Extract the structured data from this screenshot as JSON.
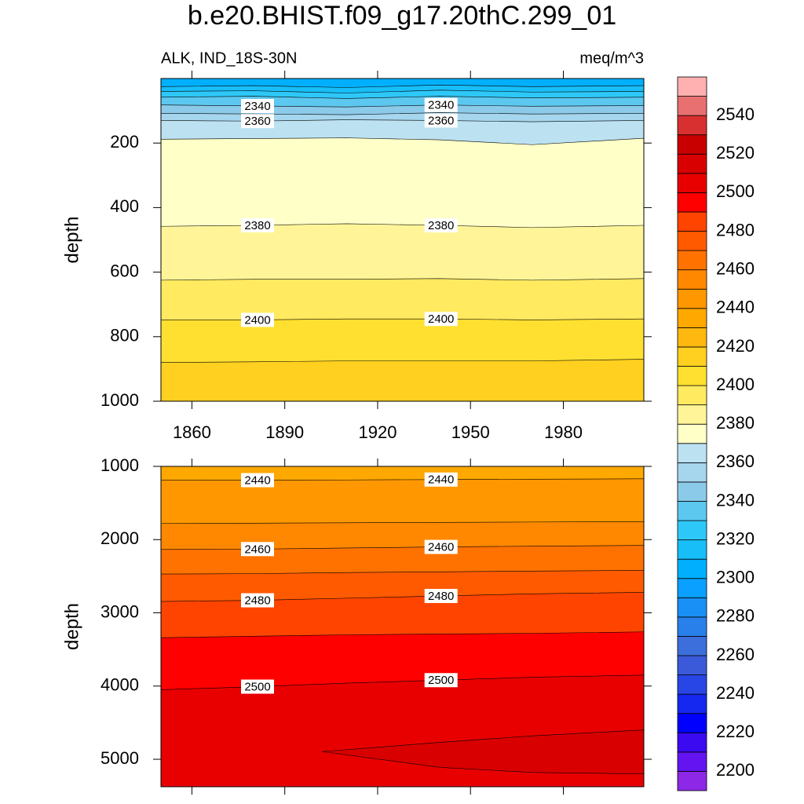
{
  "chart_data": [
    {
      "type": "contour",
      "title": "b.e20.BHIST.f09_g17.20thC.299_01",
      "subtitle_left": "ALK, IND_18S-30N",
      "subtitle_right": "meq/m^3",
      "ylabel": "depth",
      "xlim": [
        1850,
        2006
      ],
      "ylim": [
        1000,
        0
      ],
      "xticks": [
        1860,
        1890,
        1920,
        1950,
        1980
      ],
      "yticks": [
        200,
        400,
        600,
        800,
        1000
      ],
      "show_xtick_labels": true,
      "contours": [
        {
          "level": 2310,
          "labeled": false,
          "x": [
            1850,
            1880,
            1910,
            1940,
            1970,
            2006
          ],
          "depth": [
            25,
            22,
            28,
            20,
            25,
            22
          ]
        },
        {
          "level": 2320,
          "labeled": false,
          "x": [
            1850,
            1880,
            1910,
            1940,
            1970,
            2006
          ],
          "depth": [
            40,
            38,
            45,
            36,
            42,
            40
          ]
        },
        {
          "level": 2330,
          "labeled": false,
          "x": [
            1850,
            1880,
            1910,
            1940,
            1970,
            2006
          ],
          "depth": [
            58,
            55,
            62,
            55,
            60,
            58
          ]
        },
        {
          "level": 2340,
          "labeled": true,
          "x": [
            1850,
            1880,
            1910,
            1940,
            1970,
            2006
          ],
          "depth": [
            82,
            85,
            88,
            82,
            86,
            84
          ]
        },
        {
          "level": 2350,
          "labeled": false,
          "x": [
            1850,
            1880,
            1910,
            1940,
            1970,
            2006
          ],
          "depth": [
            108,
            110,
            112,
            106,
            110,
            108
          ]
        },
        {
          "level": 2360,
          "labeled": true,
          "x": [
            1850,
            1880,
            1910,
            1940,
            1970,
            2006
          ],
          "depth": [
            130,
            132,
            128,
            130,
            134,
            130
          ]
        },
        {
          "level": 2370,
          "labeled": false,
          "x": [
            1850,
            1880,
            1910,
            1940,
            1970,
            2006
          ],
          "depth": [
            188,
            186,
            184,
            190,
            205,
            185
          ]
        },
        {
          "level": 2380,
          "labeled": true,
          "x": [
            1850,
            1880,
            1910,
            1940,
            1970,
            2006
          ],
          "depth": [
            458,
            455,
            450,
            455,
            462,
            455
          ]
        },
        {
          "level": 2390,
          "labeled": false,
          "x": [
            1850,
            1880,
            1910,
            1940,
            1970,
            2006
          ],
          "depth": [
            625,
            622,
            622,
            620,
            625,
            620
          ]
        },
        {
          "level": 2400,
          "labeled": true,
          "x": [
            1850,
            1880,
            1910,
            1940,
            1970,
            2006
          ],
          "depth": [
            748,
            748,
            745,
            745,
            748,
            745
          ]
        },
        {
          "level": 2410,
          "labeled": false,
          "x": [
            1850,
            1880,
            1910,
            1940,
            1970,
            2006
          ],
          "depth": [
            880,
            878,
            875,
            875,
            875,
            870
          ]
        }
      ]
    },
    {
      "type": "contour",
      "ylabel": "depth",
      "xlim": [
        1850,
        2006
      ],
      "ylim": [
        5375,
        1000
      ],
      "xticks": [
        1860,
        1890,
        1920,
        1950,
        1980
      ],
      "yticks": [
        1000,
        2000,
        3000,
        4000,
        5000
      ],
      "show_xtick_labels": false,
      "contours": [
        {
          "level": 2440,
          "labeled": true,
          "x": [
            1850,
            1880,
            1910,
            1940,
            1970,
            2006
          ],
          "depth": [
            1190,
            1188,
            1185,
            1180,
            1175,
            1170
          ]
        },
        {
          "level": 2450,
          "labeled": false,
          "x": [
            1850,
            1880,
            1910,
            1940,
            1970,
            2006
          ],
          "depth": [
            1780,
            1775,
            1770,
            1765,
            1760,
            1755
          ]
        },
        {
          "level": 2460,
          "labeled": true,
          "x": [
            1850,
            1880,
            1910,
            1940,
            1970,
            2006
          ],
          "depth": [
            2135,
            2130,
            2115,
            2100,
            2090,
            2080
          ]
        },
        {
          "level": 2470,
          "labeled": false,
          "x": [
            1850,
            1880,
            1910,
            1940,
            1970,
            2006
          ],
          "depth": [
            2470,
            2465,
            2450,
            2440,
            2430,
            2420
          ]
        },
        {
          "level": 2480,
          "labeled": true,
          "x": [
            1850,
            1880,
            1910,
            1940,
            1970,
            2006
          ],
          "depth": [
            2845,
            2830,
            2800,
            2770,
            2740,
            2720
          ]
        },
        {
          "level": 2490,
          "labeled": false,
          "x": [
            1850,
            1880,
            1910,
            1940,
            1970,
            2006
          ],
          "depth": [
            3340,
            3320,
            3300,
            3290,
            3280,
            3260
          ]
        },
        {
          "level": 2500,
          "labeled": true,
          "x": [
            1850,
            1880,
            1910,
            1940,
            1970,
            2006
          ],
          "depth": [
            4050,
            4010,
            3960,
            3920,
            3880,
            3850
          ]
        },
        {
          "level": 2510,
          "labeled": false,
          "x": [
            1902,
            1940,
            1970,
            2006,
            2006,
            1970,
            1940,
            1902
          ],
          "depth": [
            4895,
            4770,
            4680,
            4600,
            5200,
            5180,
            5110,
            4895
          ]
        }
      ]
    }
  ],
  "colorbar": {
    "levels": [
      2200,
      2210,
      2220,
      2230,
      2240,
      2250,
      2260,
      2270,
      2280,
      2290,
      2300,
      2310,
      2320,
      2330,
      2340,
      2350,
      2360,
      2370,
      2380,
      2390,
      2400,
      2410,
      2420,
      2430,
      2440,
      2450,
      2460,
      2470,
      2480,
      2490,
      2500,
      2510,
      2520,
      2530,
      2540,
      2550
    ],
    "colors": [
      "#8c28e6",
      "#6414f0",
      "#3c0af0",
      "#0000ff",
      "#1428f0",
      "#2846e6",
      "#3a5ada",
      "#3c6edc",
      "#2a80ea",
      "#1890f5",
      "#0aa0ff",
      "#00b0ff",
      "#18bef8",
      "#2ec8f8",
      "#5cc8f0",
      "#8ccaea",
      "#a6d6ee",
      "#bce2f2",
      "#ffffc8",
      "#fff598",
      "#ffea60",
      "#ffe030",
      "#ffd020",
      "#ffb810",
      "#ffa800",
      "#ff9800",
      "#ff8800",
      "#ff7200",
      "#ff5a00",
      "#ff4400",
      "#ff0000",
      "#e80000",
      "#d80000",
      "#c80000",
      "#d83030",
      "#e87070",
      "#ffb0b0"
    ],
    "labels": [
      2200,
      2220,
      2240,
      2260,
      2280,
      2300,
      2320,
      2340,
      2360,
      2380,
      2400,
      2420,
      2440,
      2460,
      2480,
      2500,
      2520,
      2540
    ]
  }
}
